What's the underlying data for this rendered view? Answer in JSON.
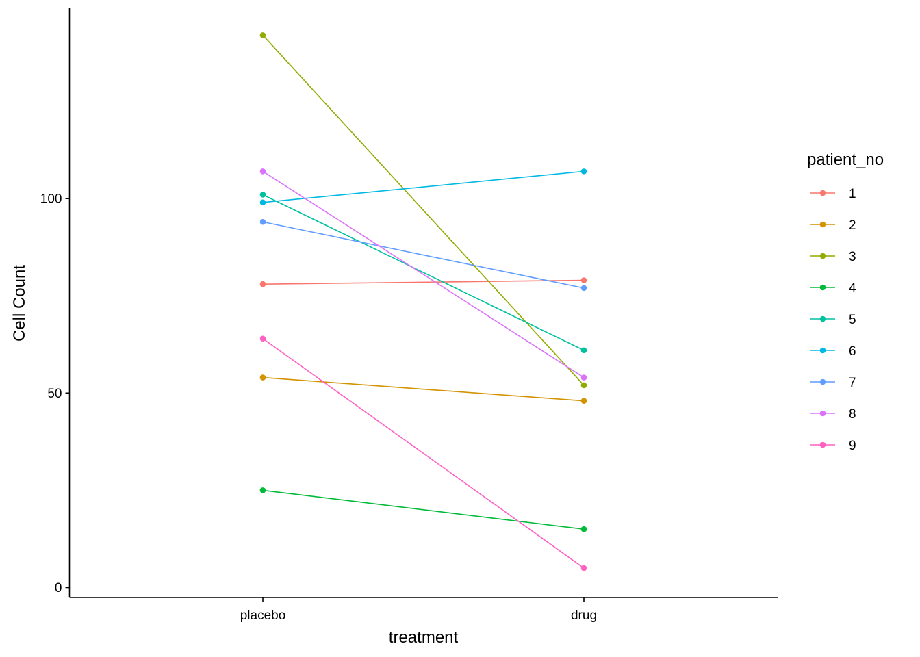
{
  "chart_data": {
    "type": "line",
    "categories": [
      "placebo",
      "drug"
    ],
    "xlabel": "treatment",
    "ylabel": "Cell Count",
    "ylim": [
      -1.5,
      150
    ],
    "yticks": [
      0,
      50,
      100
    ],
    "grid": false,
    "legend": {
      "title": "patient_no",
      "position": "right"
    },
    "series": [
      {
        "name": "1",
        "color": "#F8766D",
        "values": [
          78,
          79
        ]
      },
      {
        "name": "2",
        "color": "#D39200",
        "values": [
          54,
          48
        ]
      },
      {
        "name": "3",
        "color": "#93AA00",
        "values": [
          142,
          52
        ]
      },
      {
        "name": "4",
        "color": "#00BA38",
        "values": [
          25,
          15
        ]
      },
      {
        "name": "5",
        "color": "#00C19F",
        "values": [
          101,
          61
        ]
      },
      {
        "name": "6",
        "color": "#00B9E3",
        "values": [
          99,
          107
        ]
      },
      {
        "name": "7",
        "color": "#619CFF",
        "values": [
          94,
          77
        ]
      },
      {
        "name": "8",
        "color": "#DB72FB",
        "values": [
          107,
          54
        ]
      },
      {
        "name": "9",
        "color": "#FF61C3",
        "values": [
          64,
          5
        ]
      }
    ]
  }
}
